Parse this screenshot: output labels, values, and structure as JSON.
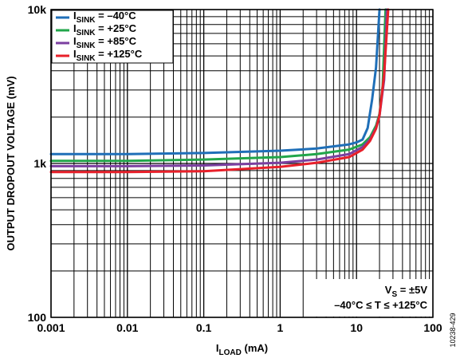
{
  "chart_data": {
    "type": "line",
    "x_scale": "log",
    "y_scale": "log",
    "xlim": [
      0.001,
      100
    ],
    "ylim": [
      100,
      10000
    ],
    "x_ticks": [
      {
        "value": 0.001,
        "label": "0.001"
      },
      {
        "value": 0.01,
        "label": "0.01"
      },
      {
        "value": 0.1,
        "label": "0.1"
      },
      {
        "value": 1,
        "label": "1"
      },
      {
        "value": 10,
        "label": "10"
      },
      {
        "value": 100,
        "label": "100"
      }
    ],
    "y_ticks": [
      {
        "value": 100,
        "label": "100"
      },
      {
        "value": 1000,
        "label": "1k"
      },
      {
        "value": 10000,
        "label": "10k"
      }
    ],
    "xlabel": {
      "main": "I",
      "sub": "LOAD",
      "unit": " (mA)"
    },
    "ylabel": "OUTPUT DROPOUT VOLTAGE (mV)",
    "grid": true,
    "legend_position": "top-left",
    "annotation": {
      "line1_main": "V",
      "line1_sub": "S",
      "line1_rest": " = ±5V",
      "line2": "–40°C ≤ T ≤ +125°C"
    },
    "figure_id": "10238-429",
    "series": [
      {
        "name_main": "I",
        "name_sub": "SINK",
        "name_rest": " = –40°C",
        "color": "#1f6fb8",
        "points": [
          [
            0.001,
            1150
          ],
          [
            0.01,
            1150
          ],
          [
            0.1,
            1170
          ],
          [
            1,
            1210
          ],
          [
            3,
            1250
          ],
          [
            8,
            1330
          ],
          [
            10,
            1370
          ],
          [
            12,
            1430
          ],
          [
            14,
            1700
          ],
          [
            16,
            2600
          ],
          [
            18,
            4200
          ],
          [
            20,
            10000
          ]
        ]
      },
      {
        "name_main": "I",
        "name_sub": "SINK",
        "name_rest": " = +25°C",
        "color": "#21a64a",
        "points": [
          [
            0.001,
            1040
          ],
          [
            0.01,
            1040
          ],
          [
            0.1,
            1060
          ],
          [
            1,
            1100
          ],
          [
            3,
            1150
          ],
          [
            8,
            1230
          ],
          [
            12,
            1330
          ],
          [
            15,
            1480
          ],
          [
            18,
            1760
          ],
          [
            20,
            2100
          ],
          [
            22,
            3200
          ],
          [
            24,
            10000
          ]
        ]
      },
      {
        "name_main": "I",
        "name_sub": "SINK",
        "name_rest": " = +85°C",
        "color": "#7b3fa0",
        "points": [
          [
            0.001,
            960
          ],
          [
            0.01,
            960
          ],
          [
            0.1,
            970
          ],
          [
            1,
            1010
          ],
          [
            3,
            1060
          ],
          [
            8,
            1150
          ],
          [
            12,
            1280
          ],
          [
            15,
            1430
          ],
          [
            18,
            1700
          ],
          [
            20,
            2050
          ],
          [
            23,
            3500
          ],
          [
            25,
            10000
          ]
        ]
      },
      {
        "name_main": "I",
        "name_sub": "SINK",
        "name_rest": " = +125°C",
        "color": "#e8202a",
        "points": [
          [
            0.001,
            880
          ],
          [
            0.01,
            880
          ],
          [
            0.1,
            890
          ],
          [
            1,
            950
          ],
          [
            3,
            1010
          ],
          [
            8,
            1100
          ],
          [
            12,
            1230
          ],
          [
            15,
            1400
          ],
          [
            18,
            1680
          ],
          [
            20,
            2050
          ],
          [
            23,
            3800
          ],
          [
            26,
            10000
          ]
        ]
      }
    ]
  }
}
